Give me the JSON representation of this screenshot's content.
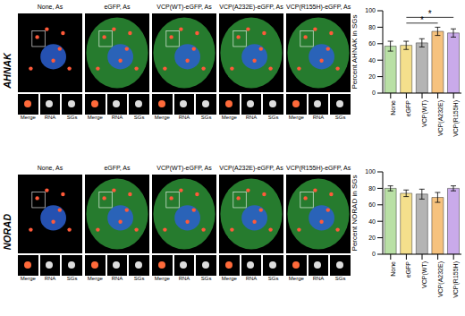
{
  "images": {
    "titles": [
      "None, As",
      "eGFP, As",
      "VCP(WT)-eGFP, As",
      "VCP(A232E)-eGFP, As",
      "VCP(R155H)-eGFP, As"
    ],
    "inset_labels": [
      "Merge",
      "RNA",
      "SGs"
    ]
  },
  "chart_data": [
    {
      "type": "bar",
      "row_label": "AHNAK",
      "y_label": "Percent AHNAK in SGs",
      "categories": [
        "None",
        "eGFP",
        "VCP(WT)",
        "VCP(A232E)",
        "VCP(R155H)"
      ],
      "values": [
        57,
        58,
        61,
        75,
        73
      ],
      "errors": [
        6,
        5,
        5,
        5,
        5
      ],
      "colors": [
        "#b9e0a5",
        "#f4df8c",
        "#b4b4b4",
        "#f6c27e",
        "#c9aaea"
      ],
      "ylim": [
        0,
        100
      ],
      "yticks": [
        0,
        20,
        40,
        60,
        80,
        100
      ],
      "significance": [
        {
          "from": "eGFP",
          "to": "VCP(A232E)",
          "label": "*"
        },
        {
          "from": "eGFP",
          "to": "VCP(R155H)",
          "label": "*"
        }
      ]
    },
    {
      "type": "bar",
      "row_label": "NORAD",
      "y_label": "Percent NORAD in SGs",
      "categories": [
        "None",
        "eGFP",
        "VCP(WT)",
        "VCP(A232E)",
        "VCP(R155H)"
      ],
      "values": [
        80,
        74,
        73,
        69,
        80
      ],
      "errors": [
        3,
        4,
        6,
        6,
        3
      ],
      "colors": [
        "#b9e0a5",
        "#f4df8c",
        "#b4b4b4",
        "#f6c27e",
        "#c9aaea"
      ],
      "ylim": [
        0,
        100
      ],
      "yticks": [
        0,
        20,
        40,
        60,
        80,
        100
      ]
    }
  ]
}
